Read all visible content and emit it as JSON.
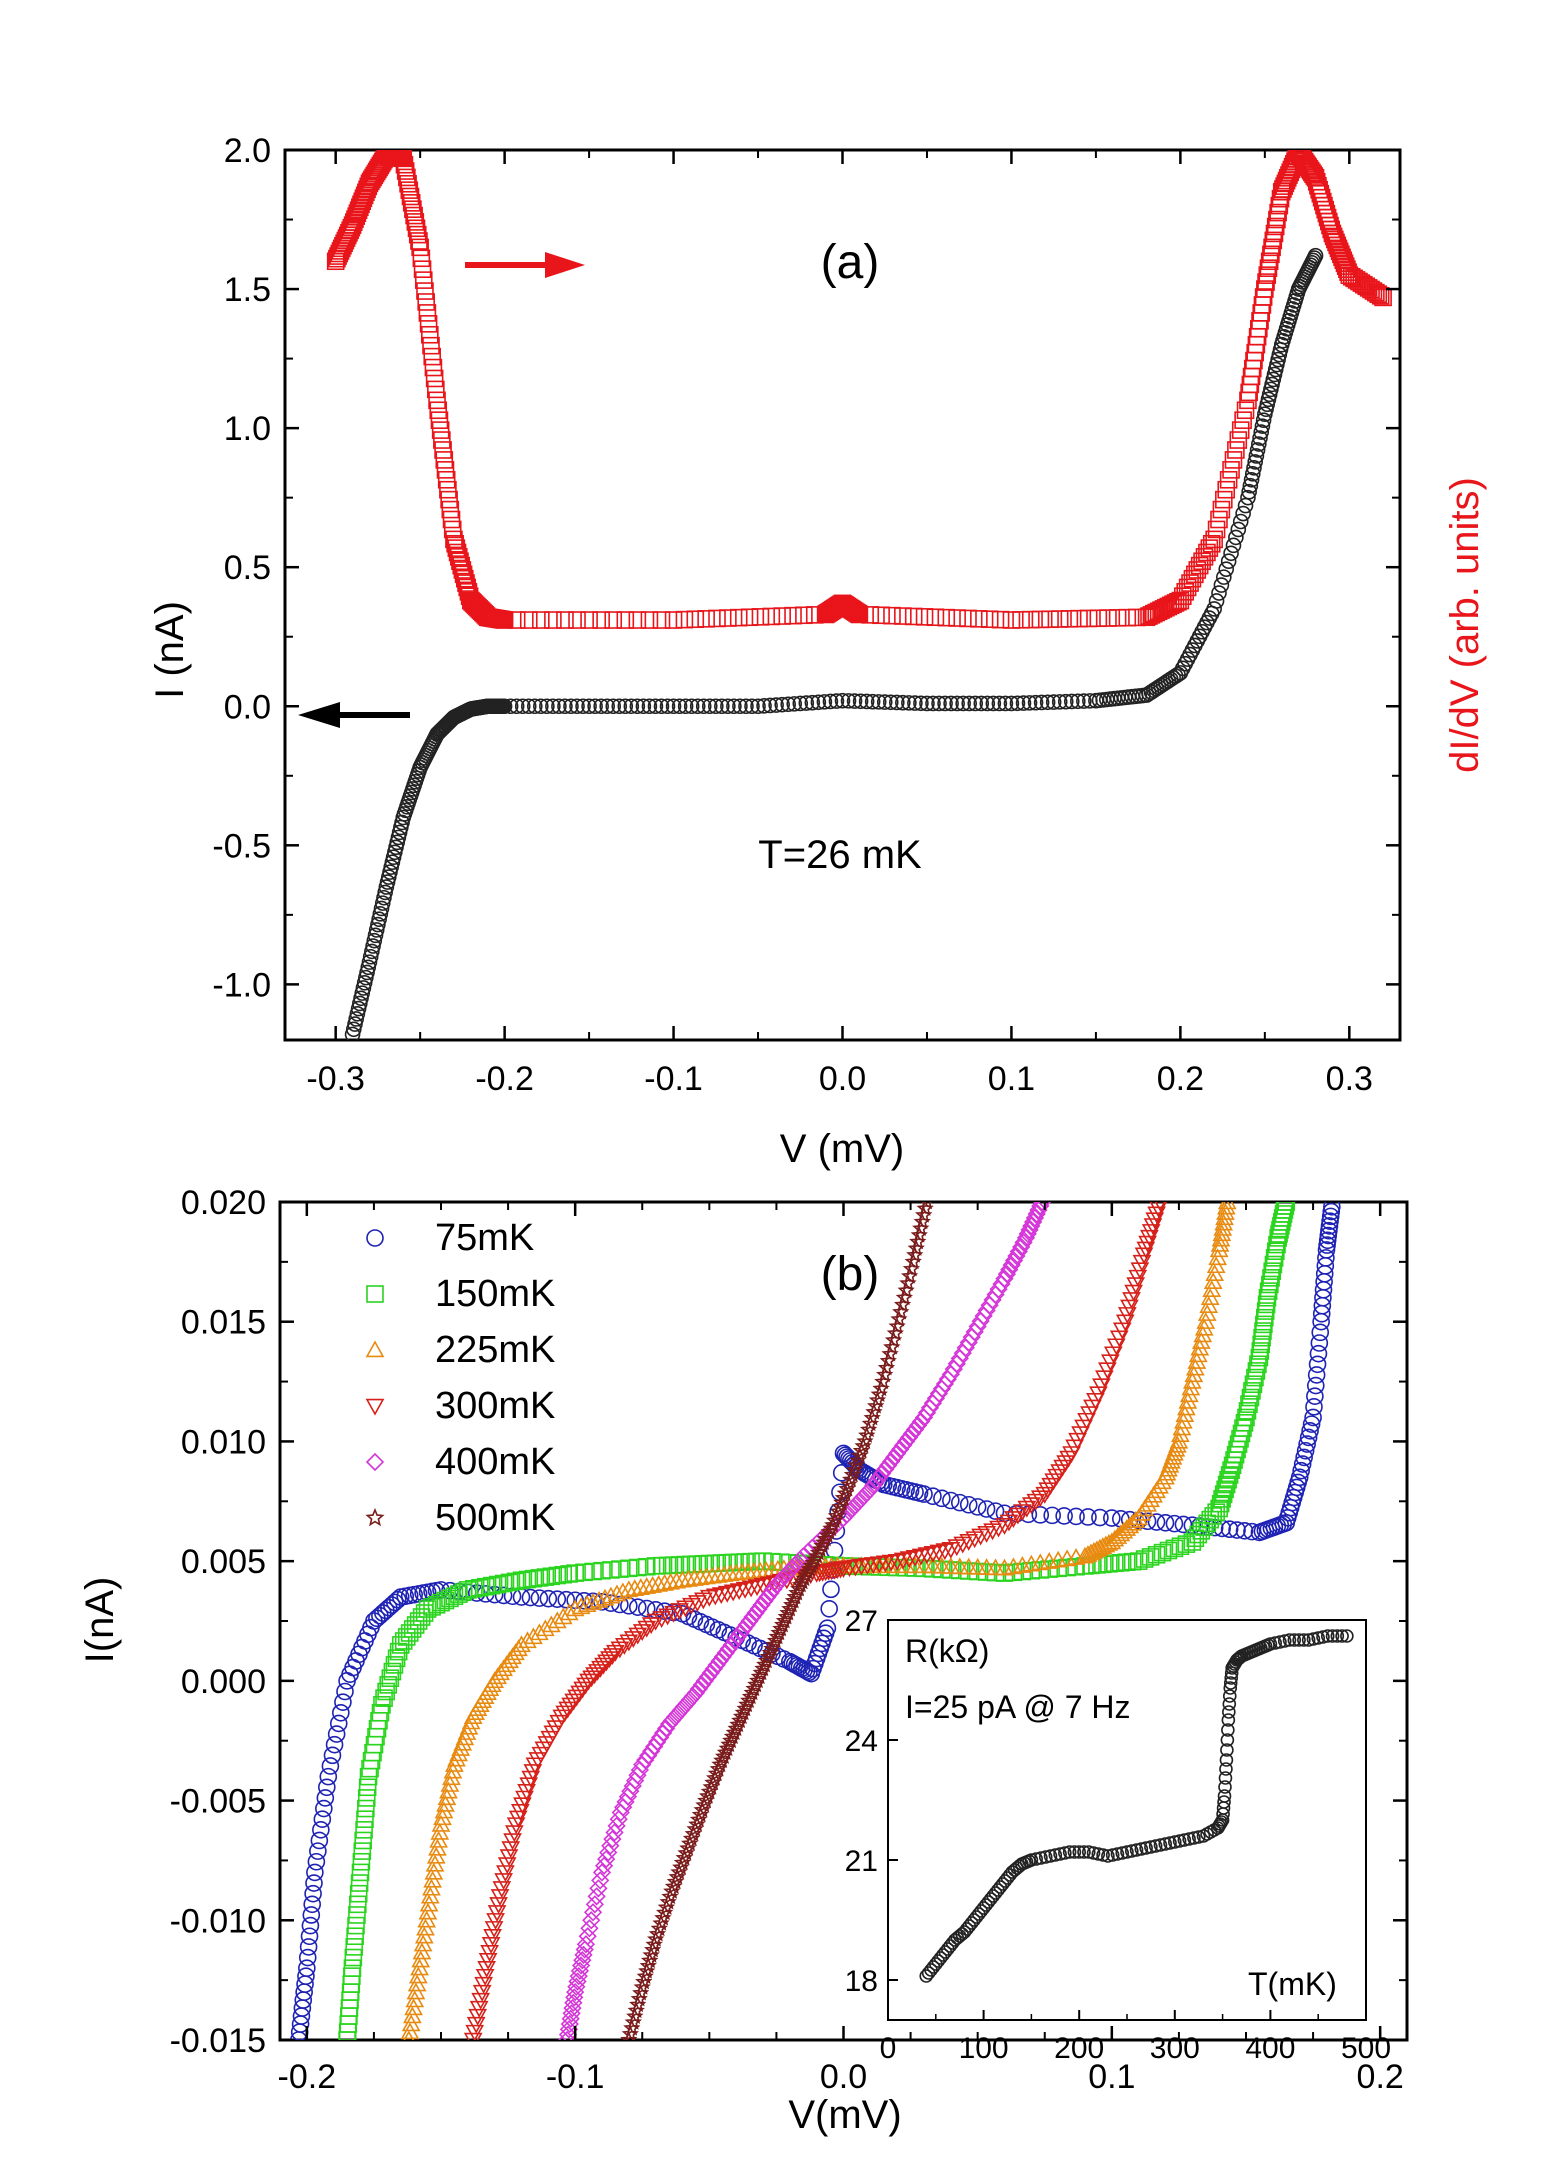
{
  "chart_data": [
    {
      "id": "a",
      "type": "scatter",
      "panel_label": "(a)",
      "xlabel": "V (mV)",
      "ylabel": "I (nA)",
      "ylabel_right": "dI/dV (arb. units)",
      "xlim": [
        -0.33,
        0.33
      ],
      "ylim": [
        -1.2,
        2.0
      ],
      "xticks": [
        "-0.3",
        "-0.2",
        "-0.1",
        "0.0",
        "0.1",
        "0.2",
        "0.3"
      ],
      "yticks": [
        "-1.0",
        "-0.5",
        "0.0",
        "0.5",
        "1.0",
        "1.5",
        "2.0"
      ],
      "annotation": "T=26 mK",
      "colors": {
        "current": "#222222",
        "didv": "#e8151b"
      },
      "series": [
        {
          "name": "I (nA)",
          "marker": "circle",
          "axis": "left",
          "x": [
            -0.29,
            -0.28,
            -0.27,
            -0.26,
            -0.25,
            -0.24,
            -0.23,
            -0.22,
            -0.21,
            -0.2,
            -0.15,
            -0.1,
            -0.05,
            0.0,
            0.05,
            0.1,
            0.15,
            0.18,
            0.2,
            0.22,
            0.24,
            0.25,
            0.26,
            0.27,
            0.28
          ],
          "y": [
            -1.18,
            -0.92,
            -0.65,
            -0.4,
            -0.22,
            -0.1,
            -0.04,
            -0.01,
            0.0,
            0.0,
            0.0,
            0.0,
            0.0,
            0.02,
            0.01,
            0.01,
            0.02,
            0.04,
            0.12,
            0.35,
            0.75,
            1.05,
            1.3,
            1.5,
            1.62
          ]
        },
        {
          "name": "dI/dV",
          "marker": "square",
          "axis": "right",
          "x": [
            -0.3,
            -0.29,
            -0.28,
            -0.27,
            -0.26,
            -0.25,
            -0.24,
            -0.23,
            -0.22,
            -0.21,
            -0.2,
            -0.1,
            -0.01,
            0.0,
            0.01,
            0.1,
            0.18,
            0.2,
            0.22,
            0.24,
            0.25,
            0.26,
            0.27,
            0.28,
            0.29,
            0.3,
            0.32
          ],
          "y": [
            1.6,
            1.73,
            1.88,
            1.98,
            1.97,
            1.65,
            1.1,
            0.6,
            0.38,
            0.32,
            0.31,
            0.31,
            0.33,
            0.37,
            0.33,
            0.31,
            0.32,
            0.38,
            0.6,
            1.1,
            1.5,
            1.85,
            1.99,
            1.9,
            1.7,
            1.55,
            1.47
          ]
        }
      ]
    },
    {
      "id": "b",
      "type": "scatter",
      "panel_label": "(b)",
      "xlabel": "V(mV)",
      "ylabel": "I(nA)",
      "xlim": [
        -0.21,
        0.21
      ],
      "ylim": [
        -0.015,
        0.02
      ],
      "xticks": [
        "-0.2",
        "-0.1",
        "0.0",
        "0.1",
        "0.2"
      ],
      "yticks": [
        "-0.015",
        "-0.010",
        "-0.005",
        "0.000",
        "0.005",
        "0.010",
        "0.015",
        "0.020"
      ],
      "legend_position": "top-left",
      "series": [
        {
          "name": "75mK",
          "marker": "circle",
          "color": "#1f23b4",
          "x": [
            -0.203,
            -0.2,
            -0.197,
            -0.192,
            -0.185,
            -0.175,
            -0.165,
            -0.15,
            -0.12,
            -0.09,
            -0.06,
            -0.04,
            -0.02,
            -0.012,
            -0.006,
            0.0,
            0.006,
            0.015,
            0.03,
            0.06,
            0.1,
            0.13,
            0.155,
            0.165,
            0.17,
            0.175,
            0.178,
            0.18,
            0.182
          ],
          "y": [
            -0.015,
            -0.012,
            -0.008,
            -0.004,
            0.0,
            0.0025,
            0.0035,
            0.0038,
            0.0035,
            0.0033,
            0.0028,
            0.0018,
            0.0008,
            0.0003,
            0.0022,
            0.0095,
            0.0088,
            0.0082,
            0.0078,
            0.007,
            0.0068,
            0.0065,
            0.0062,
            0.0066,
            0.0085,
            0.011,
            0.015,
            0.018,
            0.0198
          ]
        },
        {
          "name": "150mK",
          "marker": "square",
          "color": "#2bd41f",
          "x": [
            -0.185,
            -0.183,
            -0.18,
            -0.177,
            -0.172,
            -0.165,
            -0.155,
            -0.14,
            -0.12,
            -0.1,
            -0.07,
            -0.05,
            -0.03,
            0.0,
            0.03,
            0.06,
            0.09,
            0.11,
            0.13,
            0.14,
            0.145,
            0.15,
            0.155,
            0.158,
            0.162,
            0.165
          ],
          "y": [
            -0.015,
            -0.012,
            -0.008,
            -0.004,
            -0.001,
            0.0015,
            0.003,
            0.0038,
            0.0042,
            0.0045,
            0.0048,
            0.0049,
            0.005,
            0.0048,
            0.0047,
            0.0045,
            0.0048,
            0.005,
            0.0058,
            0.0072,
            0.009,
            0.011,
            0.0135,
            0.016,
            0.0185,
            0.02
          ]
        },
        {
          "name": "225mK",
          "marker": "triangle-up",
          "color": "#e88a10",
          "x": [
            -0.162,
            -0.158,
            -0.154,
            -0.15,
            -0.145,
            -0.138,
            -0.13,
            -0.12,
            -0.1,
            -0.08,
            -0.06,
            -0.04,
            -0.02,
            0.0,
            0.03,
            0.06,
            0.09,
            0.1,
            0.11,
            0.12,
            0.125,
            0.13,
            0.135,
            0.14,
            0.143
          ],
          "y": [
            -0.015,
            -0.012,
            -0.009,
            -0.006,
            -0.0035,
            -0.0015,
            0.0,
            0.0015,
            0.003,
            0.0038,
            0.0042,
            0.0045,
            0.0047,
            0.0048,
            0.0048,
            0.0047,
            0.0052,
            0.0058,
            0.0068,
            0.0085,
            0.01,
            0.0125,
            0.015,
            0.018,
            0.02
          ]
        },
        {
          "name": "300mK",
          "marker": "triangle-down",
          "color": "#d6201a",
          "x": [
            -0.138,
            -0.133,
            -0.128,
            -0.122,
            -0.115,
            -0.105,
            -0.095,
            -0.085,
            -0.07,
            -0.05,
            -0.03,
            -0.01,
            0.0,
            0.02,
            0.04,
            0.06,
            0.075,
            0.085,
            0.095,
            0.105,
            0.112,
            0.118
          ],
          "y": [
            -0.015,
            -0.012,
            -0.009,
            -0.006,
            -0.0035,
            -0.0015,
            0.0,
            0.0012,
            0.0025,
            0.0035,
            0.004,
            0.0045,
            0.0047,
            0.005,
            0.0055,
            0.0065,
            0.0078,
            0.0095,
            0.012,
            0.015,
            0.0178,
            0.02
          ]
        },
        {
          "name": "400mK",
          "marker": "diamond",
          "color": "#d535d8",
          "x": [
            -0.103,
            -0.1,
            -0.096,
            -0.09,
            -0.083,
            -0.075,
            -0.065,
            -0.055,
            -0.045,
            -0.035,
            -0.025,
            -0.015,
            0.0,
            0.01,
            0.02,
            0.03,
            0.04,
            0.05,
            0.06,
            0.068,
            0.074
          ],
          "y": [
            -0.015,
            -0.013,
            -0.011,
            -0.008,
            -0.0055,
            -0.0035,
            -0.0018,
            -0.0005,
            0.001,
            0.0025,
            0.004,
            0.0052,
            0.0068,
            0.008,
            0.0095,
            0.011,
            0.0128,
            0.0148,
            0.0168,
            0.0185,
            0.02
          ]
        },
        {
          "name": "500mK",
          "marker": "star",
          "color": "#7a1c1c",
          "x": [
            -0.08,
            -0.075,
            -0.07,
            -0.064,
            -0.058,
            -0.052,
            -0.046,
            -0.04,
            -0.034,
            -0.028,
            -0.022,
            -0.016,
            -0.01,
            -0.004,
            0.002,
            0.008,
            0.014,
            0.02,
            0.026,
            0.031
          ],
          "y": [
            -0.015,
            -0.0128,
            -0.0108,
            -0.0088,
            -0.007,
            -0.0052,
            -0.0035,
            -0.002,
            -0.0005,
            0.001,
            0.0025,
            0.004,
            0.0052,
            0.0065,
            0.0082,
            0.01,
            0.0122,
            0.0148,
            0.0175,
            0.02
          ]
        }
      ]
    },
    {
      "id": "inset",
      "type": "scatter",
      "ylabel": "R(kΩ)",
      "xlabel": "T(mK)",
      "annotation": "I=25 pA @ 7 Hz",
      "xlim": [
        0,
        500
      ],
      "ylim": [
        17,
        27
      ],
      "xticks": [
        "0",
        "100",
        "200",
        "300",
        "400",
        "500"
      ],
      "yticks": [
        "18",
        "21",
        "24",
        "27"
      ],
      "series": [
        {
          "name": "R(T)",
          "marker": "circle",
          "color": "#222222",
          "x": [
            40,
            50,
            60,
            70,
            80,
            90,
            100,
            110,
            120,
            130,
            140,
            150,
            170,
            190,
            210,
            230,
            250,
            270,
            290,
            310,
            330,
            345,
            350,
            352,
            354,
            356,
            358,
            360,
            365,
            370,
            380,
            390,
            400,
            420,
            440,
            460,
            480
          ],
          "y": [
            18.1,
            18.4,
            18.7,
            19.0,
            19.2,
            19.5,
            19.8,
            20.1,
            20.4,
            20.7,
            20.9,
            21.0,
            21.1,
            21.2,
            21.2,
            21.1,
            21.2,
            21.3,
            21.4,
            21.5,
            21.6,
            21.8,
            22.0,
            22.6,
            23.5,
            24.5,
            25.3,
            25.8,
            26.0,
            26.1,
            26.2,
            26.3,
            26.4,
            26.5,
            26.5,
            26.6,
            26.6
          ]
        }
      ]
    }
  ]
}
